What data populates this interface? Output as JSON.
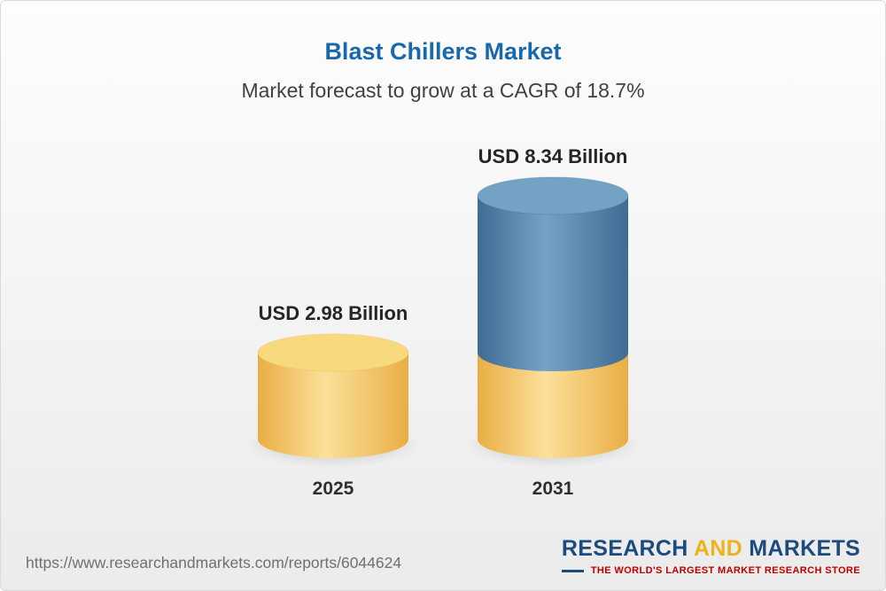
{
  "header": {
    "title": "Blast Chillers Market",
    "subtitle": "Market forecast to grow at a CAGR of 18.7%"
  },
  "chart_data": {
    "type": "bar",
    "style": "3d-cylinder",
    "title": "Blast Chillers Market",
    "subtitle": "Market forecast to grow at a CAGR of 18.7%",
    "unit": "USD Billion",
    "cagr": "18.7%",
    "grid": false,
    "legend": false,
    "categories": [
      "2025",
      "2031"
    ],
    "values": [
      2.98,
      8.34
    ],
    "value_labels": [
      "USD 2.98 Billion",
      "USD 8.34 Billion"
    ],
    "bars": [
      {
        "category": "2025",
        "value": 2.98,
        "label": "USD 2.98 Billion",
        "segments": [
          {
            "value": 2.98,
            "color": "gold"
          }
        ]
      },
      {
        "category": "2031",
        "value": 8.34,
        "label": "USD 8.34 Billion",
        "segments": [
          {
            "value": 2.98,
            "color": "gold"
          },
          {
            "value": 5.36,
            "color": "blue"
          }
        ]
      }
    ],
    "palette": {
      "gold": {
        "side_dark": "#E9AE45",
        "side_light": "#FCE09A",
        "top": "#F9D97E"
      },
      "blue": {
        "side_dark": "#3E6C92",
        "side_light": "#74A3C7",
        "top": "#74A2C4"
      }
    }
  },
  "footer": {
    "url": "https://www.researchandmarkets.com/reports/6044624",
    "logo": {
      "word1": "RESEARCH",
      "word2": "AND",
      "word3": "MARKETS",
      "tagline": "THE WORLD'S LARGEST MARKET RESEARCH STORE",
      "navy": "#1B4B7F",
      "gold": "#EEB21B",
      "tagline_color": "#C00000"
    }
  }
}
